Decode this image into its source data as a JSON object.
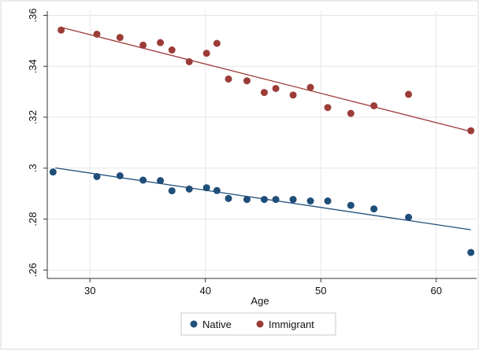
{
  "chart_data": {
    "type": "scatter",
    "title": "",
    "xlabel": "Age",
    "ylabel": "",
    "xlim": [
      26.3,
      63.5
    ],
    "ylim": [
      0.2567,
      0.3617
    ],
    "x_ticks": [
      30,
      40,
      50,
      60
    ],
    "x_tick_labels": [
      "30",
      "40",
      "50",
      "60"
    ],
    "y_ticks": [
      0.26,
      0.28,
      0.3,
      0.32,
      0.34,
      0.36
    ],
    "y_tick_labels": [
      ".26",
      ".28",
      ".3",
      ".32",
      ".34",
      ".36"
    ],
    "grid": true,
    "legend": "bottom",
    "series": [
      {
        "name": "Native",
        "color": "#1f4e79",
        "points": [
          [
            26.8,
            0.2985
          ],
          [
            30.6,
            0.2967
          ],
          [
            32.6,
            0.297
          ],
          [
            34.6,
            0.2953
          ],
          [
            36.1,
            0.2951
          ],
          [
            37.1,
            0.2911
          ],
          [
            38.6,
            0.2918
          ],
          [
            40.1,
            0.2923
          ],
          [
            41.0,
            0.2912
          ],
          [
            42.0,
            0.2881
          ],
          [
            43.6,
            0.2877
          ],
          [
            45.1,
            0.2877
          ],
          [
            46.1,
            0.2877
          ],
          [
            47.6,
            0.2877
          ],
          [
            49.1,
            0.2871
          ],
          [
            50.6,
            0.2871
          ],
          [
            52.6,
            0.2854
          ],
          [
            54.6,
            0.284
          ],
          [
            57.6,
            0.2807
          ],
          [
            63.0,
            0.2669
          ]
        ],
        "fit": [
          [
            27.0,
            0.3001
          ],
          [
            63.0,
            0.2758
          ]
        ]
      },
      {
        "name": "Immigrant",
        "color": "#9c3c38",
        "points": [
          [
            27.5,
            0.3542
          ],
          [
            30.6,
            0.3526
          ],
          [
            32.6,
            0.3513
          ],
          [
            34.6,
            0.3483
          ],
          [
            36.1,
            0.3493
          ],
          [
            37.1,
            0.3464
          ],
          [
            38.6,
            0.3418
          ],
          [
            40.1,
            0.3451
          ],
          [
            41.0,
            0.349
          ],
          [
            42.0,
            0.335
          ],
          [
            43.6,
            0.3343
          ],
          [
            45.1,
            0.3297
          ],
          [
            46.1,
            0.3313
          ],
          [
            47.6,
            0.3287
          ],
          [
            49.1,
            0.3317
          ],
          [
            50.6,
            0.3238
          ],
          [
            52.6,
            0.3215
          ],
          [
            54.6,
            0.3245
          ],
          [
            57.6,
            0.329
          ],
          [
            63.0,
            0.3147
          ]
        ],
        "fit": [
          [
            27.5,
            0.3553
          ],
          [
            63.0,
            0.3144
          ]
        ]
      }
    ]
  },
  "style": {
    "axis_color": "#333333",
    "grid_color": "#e6e6e6",
    "frame_color": "#d9d9d9",
    "legend_border_color": "#c8c8c8"
  }
}
